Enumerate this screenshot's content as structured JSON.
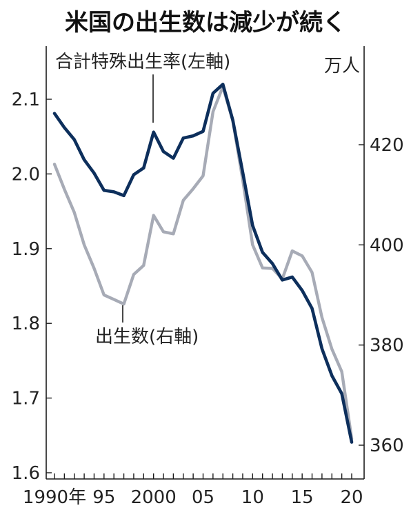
{
  "chart_data": {
    "type": "line",
    "title": "米国の出生数は減少が続く",
    "x": [
      1990,
      1991,
      1992,
      1993,
      1994,
      1995,
      1996,
      1997,
      1998,
      1999,
      2000,
      2001,
      2002,
      2003,
      2004,
      2005,
      2006,
      2007,
      2008,
      2009,
      2010,
      2011,
      2012,
      2013,
      2014,
      2015,
      2016,
      2017,
      2018,
      2019,
      2020
    ],
    "x_tick_labels": [
      {
        "x": 1990,
        "label": "1990年"
      },
      {
        "x": 1995,
        "label": "95"
      },
      {
        "x": 2000,
        "label": "2000"
      },
      {
        "x": 2005,
        "label": "05"
      },
      {
        "x": 2010,
        "label": "10"
      },
      {
        "x": 2015,
        "label": "15"
      },
      {
        "x": 2020,
        "label": "20"
      }
    ],
    "xlim": [
      1990,
      2020
    ],
    "left_axis": {
      "ylim": [
        1.6,
        2.1
      ],
      "ticks": [
        1.6,
        1.7,
        1.8,
        1.9,
        2.0,
        2.1
      ],
      "tick_labels": [
        "1.6",
        "1.7",
        "1.8",
        "1.9",
        "2.0",
        "2.1"
      ]
    },
    "right_axis": {
      "unit": "万人",
      "ticks": [
        360,
        380,
        400,
        420
      ],
      "tick_labels": [
        "360",
        "380",
        "400",
        "420"
      ]
    },
    "series": [
      {
        "name": "合計特殊出生率(左軸)",
        "axis": "left",
        "color": "#0d2f5c",
        "values": [
          2.081,
          2.062,
          2.046,
          2.019,
          2.001,
          1.978,
          1.976,
          1.971,
          1.999,
          2.008,
          2.056,
          2.03,
          2.021,
          2.048,
          2.051,
          2.057,
          2.108,
          2.12,
          2.072,
          2.002,
          1.931,
          1.895,
          1.88,
          1.858,
          1.862,
          1.844,
          1.82,
          1.766,
          1.73,
          1.706,
          1.641
        ]
      },
      {
        "name": "出生数(右軸)",
        "axis": "right",
        "color": "#a7abb6",
        "values": [
          416.1,
          411.1,
          406.5,
          400.0,
          395.3,
          390.0,
          389.1,
          388.2,
          394.1,
          395.9,
          405.9,
          402.6,
          402.2,
          408.9,
          411.2,
          413.8,
          426.6,
          431.6,
          424.8,
          413.0,
          400.0,
          395.4,
          395.3,
          393.2,
          398.8,
          397.8,
          394.5,
          385.5,
          379.2,
          374.7,
          361.3
        ]
      }
    ],
    "annotations": [
      {
        "text": "合計特殊出生率(左軸)",
        "points_to_x": 2000
      },
      {
        "text": "出生数(右軸)",
        "points_to_x": 1997
      }
    ],
    "grid": false,
    "legend": "none"
  }
}
